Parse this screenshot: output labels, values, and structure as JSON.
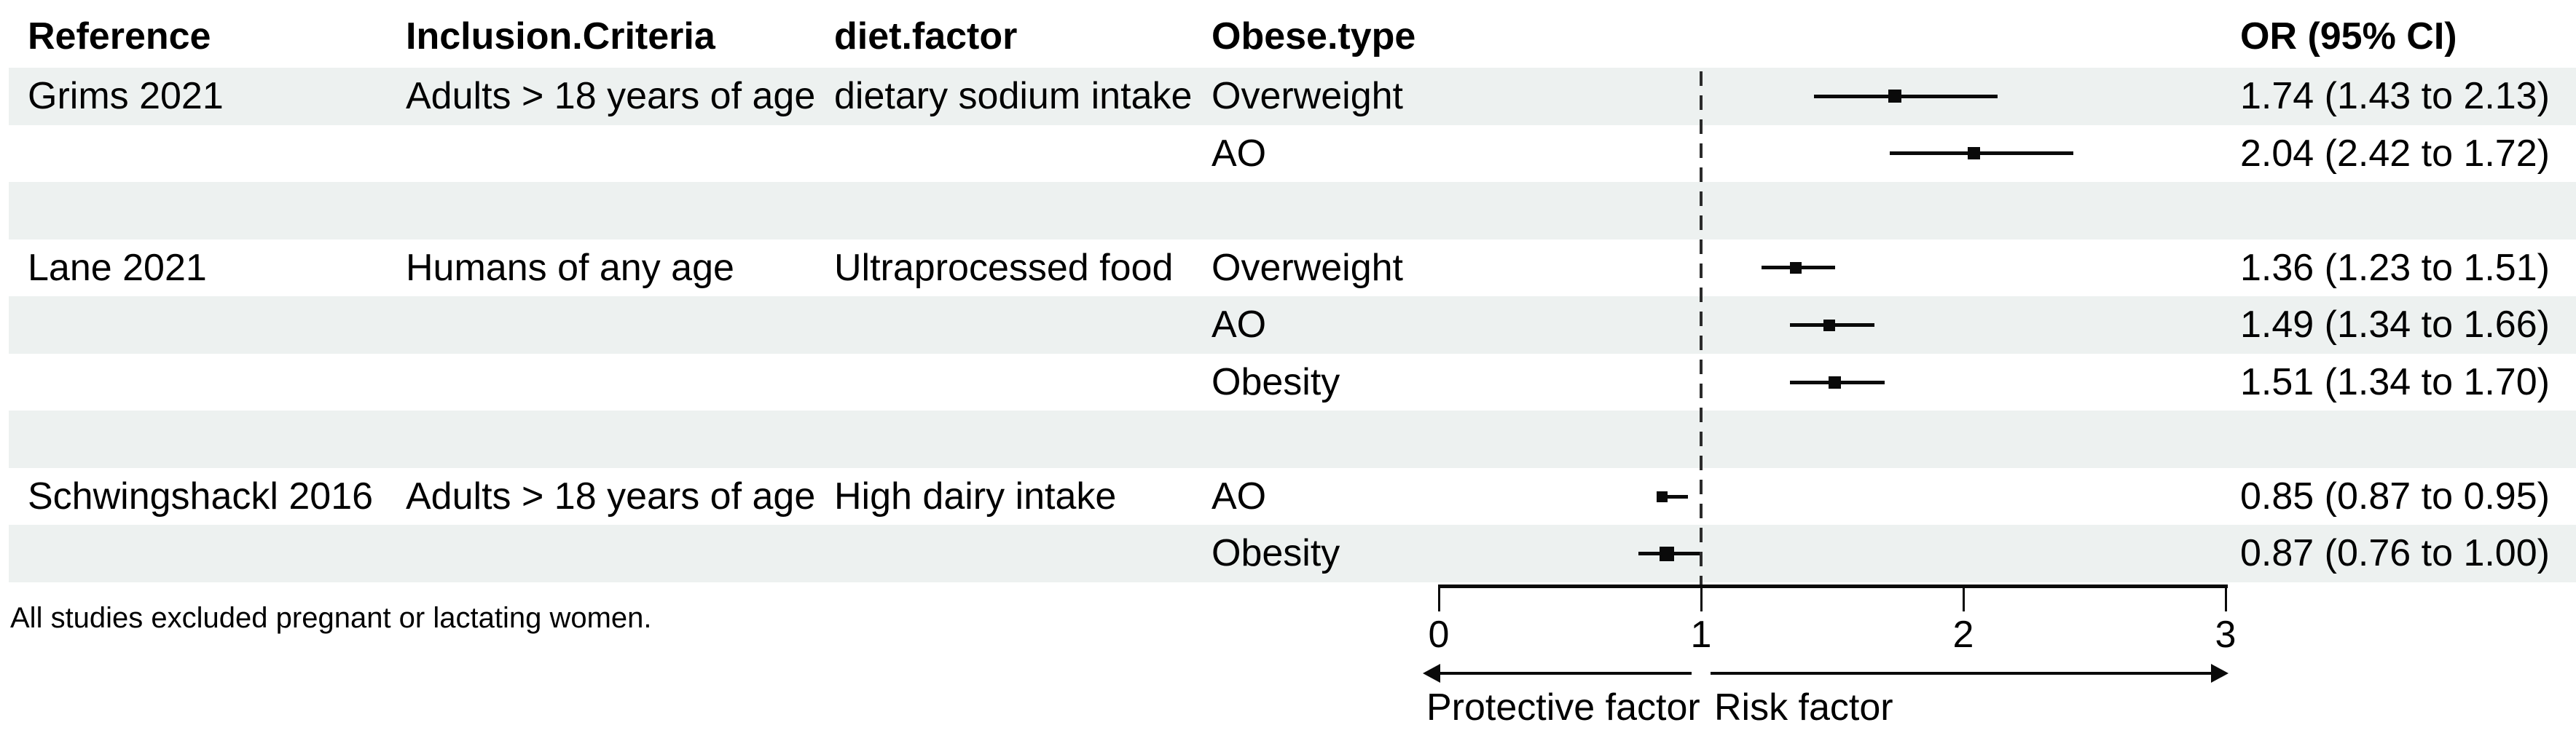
{
  "header": {
    "reference": "Reference",
    "inclusion": "Inclusion.Criteria",
    "diet": "diet.factor",
    "obese": "Obese.type",
    "or": "OR (95% CI)"
  },
  "footnote": "All studies excluded pregnant or lactating women.",
  "colors": {
    "stripe": "#edf1f0",
    "ink": "#0a0a0a"
  },
  "chart_data": {
    "type": "forest",
    "xlim": [
      0,
      3
    ],
    "ticks": [
      0,
      1,
      2,
      3
    ],
    "ref_line": 1,
    "xlabel_left": "Protective factor",
    "xlabel_right": "Risk factor",
    "rows": [
      {
        "reference": "Grims 2021",
        "inclusion": "Adults > 18 years of age",
        "diet": "dietary sodium intake",
        "obese": "Overweight",
        "or": 1.74,
        "lo": 1.43,
        "hi": 2.13,
        "ci_text": "1.74 (1.43 to 2.13)",
        "stripe": true,
        "marker": 18,
        "blank": false
      },
      {
        "reference": "",
        "inclusion": "",
        "diet": "",
        "obese": "AO",
        "or": 2.04,
        "lo": 1.72,
        "hi": 2.42,
        "ci_text": "2.04 (2.42 to 1.72)",
        "stripe": false,
        "marker": 17,
        "blank": false
      },
      {
        "reference": "",
        "inclusion": "",
        "diet": "",
        "obese": "",
        "ci_text": "",
        "stripe": true,
        "blank": true
      },
      {
        "reference": "Lane 2021",
        "inclusion": "Humans of any age",
        "diet": "Ultraprocessed food",
        "obese": "Overweight",
        "or": 1.36,
        "lo": 1.23,
        "hi": 1.51,
        "ci_text": "1.36 (1.23 to 1.51)",
        "stripe": false,
        "marker": 16,
        "blank": false
      },
      {
        "reference": "",
        "inclusion": "",
        "diet": "",
        "obese": "AO",
        "or": 1.49,
        "lo": 1.34,
        "hi": 1.66,
        "ci_text": "1.49 (1.34 to 1.66)",
        "stripe": true,
        "marker": 16,
        "blank": false
      },
      {
        "reference": "",
        "inclusion": "",
        "diet": "",
        "obese": "Obesity",
        "or": 1.51,
        "lo": 1.34,
        "hi": 1.7,
        "ci_text": "1.51 (1.34 to 1.70)",
        "stripe": false,
        "marker": 17,
        "blank": false
      },
      {
        "reference": "",
        "inclusion": "",
        "diet": "",
        "obese": "",
        "ci_text": "",
        "stripe": true,
        "blank": true
      },
      {
        "reference": "Schwingshackl 2016",
        "inclusion": "Adults > 18 years of age",
        "diet": "High dairy intake",
        "obese": "AO",
        "or": 0.85,
        "lo": 0.87,
        "hi": 0.95,
        "ci_text": "0.85 (0.87 to 0.95)",
        "stripe": false,
        "marker": 15,
        "blank": false
      },
      {
        "reference": "",
        "inclusion": "",
        "diet": "",
        "obese": "Obesity",
        "or": 0.87,
        "lo": 0.76,
        "hi": 1.0,
        "ci_text": "0.87 (0.76 to 1.00)",
        "stripe": true,
        "marker": 20,
        "blank": false
      }
    ]
  }
}
